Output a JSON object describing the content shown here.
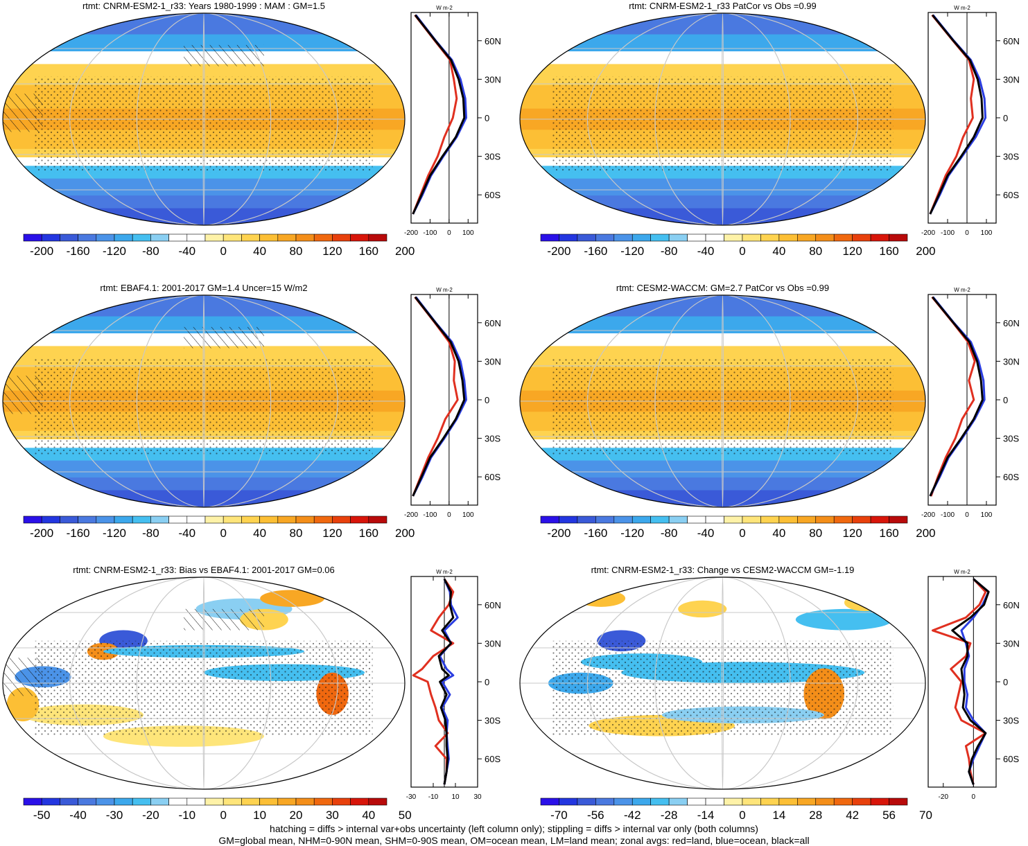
{
  "colors": {
    "palette": [
      "#2a10e8",
      "#2336e0",
      "#3a5ad8",
      "#4a79e0",
      "#4b93e8",
      "#3ca8ec",
      "#45bff0",
      "#8acff2",
      "#ffffff",
      "#ffffff",
      "#fef2a8",
      "#fee57a",
      "#fed350",
      "#fcbf35",
      "#f8a724",
      "#f48e19",
      "#f0680f",
      "#e8400c",
      "#d8150a",
      "#b80a0a"
    ],
    "land": "#e03020",
    "ocean": "#2a3de0",
    "all": "#000000",
    "grid": "#c8c8c8"
  },
  "footnotes": {
    "line1": "hatching = diffs > internal var+obs uncertainty (left column only); stippling = diffs > internal var only (both columns)",
    "line2": "GM=global mean, NHM=0-90N mean, SHM=0-90S mean, OM=ocean mean, LM=land mean; zonal avgs: red=land, blue=ocean, black=all"
  },
  "chart_data": [
    {
      "type": "heatmap",
      "title": "rtmt: CNRM-ESM2-1_r33: Years 1980-1999 : MAM : GM=1.5",
      "variant": "full",
      "colorbar": {
        "labels": [
          "-200",
          "-160",
          "-120",
          "-80",
          "-40",
          "0",
          "40",
          "80",
          "120",
          "160",
          "200"
        ],
        "range": [
          -200,
          200
        ]
      },
      "profile": {
        "unit": "W m-2",
        "xlim": [
          -200,
          150
        ],
        "xticks": [
          {
            "v": -200,
            "l": "-200"
          },
          {
            "v": -100,
            "l": "-100"
          },
          {
            "v": 0,
            "l": "0"
          },
          {
            "v": 100,
            "l": "100"
          }
        ],
        "lat_labels": [
          "60N",
          "30N",
          "0",
          "30S",
          "60S"
        ],
        "series": [
          {
            "name": "land",
            "lat": [
              80,
              60,
              45,
              30,
              15,
              0,
              -15,
              -30,
              -45,
              -60,
              -75
            ],
            "values": [
              -180,
              -75,
              5,
              25,
              40,
              20,
              -25,
              -60,
              -110,
              -150,
              -190
            ]
          },
          {
            "name": "ocean",
            "lat": [
              80,
              60,
              45,
              30,
              15,
              0,
              -15,
              -30,
              -45,
              -60,
              -75
            ],
            "values": [
              -175,
              -70,
              15,
              60,
              85,
              90,
              40,
              -30,
              -95,
              -140,
              -190
            ]
          },
          {
            "name": "all",
            "lat": [
              80,
              60,
              45,
              30,
              15,
              0,
              -15,
              -30,
              -45,
              -60,
              -75
            ],
            "values": [
              -178,
              -72,
              10,
              50,
              75,
              80,
              35,
              -35,
              -100,
              -145,
              -190
            ]
          }
        ]
      }
    },
    {
      "type": "heatmap",
      "title": "rtmt: CNRM-ESM2-1_r33 PatCor vs Obs =0.99",
      "variant": "full",
      "colorbar": {
        "labels": [
          "-200",
          "-160",
          "-120",
          "-80",
          "-40",
          "0",
          "40",
          "80",
          "120",
          "160",
          "200"
        ],
        "range": [
          -200,
          200
        ]
      },
      "profile": {
        "unit": "W m-2",
        "xlim": [
          -200,
          150
        ],
        "xticks": [
          {
            "v": -200,
            "l": "-200"
          },
          {
            "v": -100,
            "l": "-100"
          },
          {
            "v": 0,
            "l": "0"
          },
          {
            "v": 100,
            "l": "100"
          }
        ],
        "lat_labels": [
          "60N",
          "30N",
          "0",
          "30S",
          "60S"
        ],
        "series": [
          {
            "name": "land",
            "lat": [
              80,
              60,
              45,
              30,
              15,
              0,
              -15,
              -30,
              -45,
              -60,
              -75
            ],
            "values": [
              -180,
              -72,
              10,
              35,
              20,
              30,
              -20,
              -55,
              -110,
              -150,
              -190
            ]
          },
          {
            "name": "ocean",
            "lat": [
              80,
              60,
              45,
              30,
              15,
              0,
              -15,
              -30,
              -45,
              -60,
              -75
            ],
            "values": [
              -175,
              -68,
              20,
              65,
              90,
              95,
              45,
              -25,
              -95,
              -140,
              -190
            ]
          },
          {
            "name": "all",
            "lat": [
              80,
              60,
              45,
              30,
              15,
              0,
              -15,
              -30,
              -45,
              -60,
              -75
            ],
            "values": [
              -178,
              -70,
              15,
              55,
              75,
              80,
              35,
              -30,
              -100,
              -145,
              -190
            ]
          }
        ]
      }
    },
    {
      "type": "heatmap",
      "title": "rtmt: EBAF4.1: 2001-2017 GM=1.4 Uncer=15 W/m2",
      "variant": "full",
      "colorbar": {
        "labels": [
          "-200",
          "-160",
          "-120",
          "-80",
          "-40",
          "0",
          "40",
          "80",
          "120",
          "160",
          "200"
        ],
        "range": [
          -200,
          200
        ]
      },
      "profile": {
        "unit": "W m-2",
        "xlim": [
          -200,
          150
        ],
        "xticks": [
          {
            "v": -200,
            "l": "-200"
          },
          {
            "v": -100,
            "l": "-100"
          },
          {
            "v": 0,
            "l": "0"
          },
          {
            "v": 100,
            "l": "100"
          }
        ],
        "lat_labels": [
          "60N",
          "30N",
          "0",
          "30S",
          "60S"
        ],
        "series": [
          {
            "name": "land",
            "lat": [
              80,
              60,
              45,
              30,
              15,
              0,
              -15,
              -30,
              -45,
              -60,
              -75
            ],
            "values": [
              -180,
              -75,
              0,
              30,
              25,
              45,
              -20,
              -60,
              -110,
              -150,
              -190
            ]
          },
          {
            "name": "ocean",
            "lat": [
              80,
              60,
              45,
              30,
              15,
              0,
              -15,
              -30,
              -45,
              -60,
              -75
            ],
            "values": [
              -175,
              -70,
              15,
              60,
              80,
              90,
              40,
              -25,
              -95,
              -140,
              -190
            ]
          },
          {
            "name": "all",
            "lat": [
              80,
              60,
              45,
              30,
              15,
              0,
              -15,
              -30,
              -45,
              -60,
              -75
            ],
            "values": [
              -178,
              -72,
              8,
              50,
              70,
              80,
              35,
              -30,
              -100,
              -145,
              -190
            ]
          }
        ]
      }
    },
    {
      "type": "heatmap",
      "title": "rtmt: CESM2-WACCM: GM=2.7 PatCor vs Obs =0.99",
      "variant": "full",
      "colorbar": {
        "labels": [
          "-200",
          "-160",
          "-120",
          "-80",
          "-40",
          "0",
          "40",
          "80",
          "120",
          "160",
          "200"
        ],
        "range": [
          -200,
          200
        ]
      },
      "profile": {
        "unit": "W m-2",
        "xlim": [
          -200,
          150
        ],
        "xticks": [
          {
            "v": -200,
            "l": "-200"
          },
          {
            "v": -100,
            "l": "-100"
          },
          {
            "v": 0,
            "l": "0"
          },
          {
            "v": 100,
            "l": "100"
          }
        ],
        "lat_labels": [
          "60N",
          "30N",
          "0",
          "30S",
          "60S"
        ],
        "series": [
          {
            "name": "land",
            "lat": [
              80,
              60,
              45,
              30,
              15,
              0,
              -15,
              -30,
              -45,
              -60,
              -75
            ],
            "values": [
              -180,
              -72,
              5,
              40,
              10,
              35,
              -25,
              -60,
              -110,
              -150,
              -185
            ]
          },
          {
            "name": "ocean",
            "lat": [
              80,
              60,
              45,
              30,
              15,
              0,
              -15,
              -30,
              -45,
              -60,
              -75
            ],
            "values": [
              -175,
              -68,
              20,
              60,
              85,
              90,
              40,
              -25,
              -95,
              -140,
              -190
            ]
          },
          {
            "name": "all",
            "lat": [
              80,
              60,
              45,
              30,
              15,
              0,
              -15,
              -30,
              -45,
              -60,
              -75
            ],
            "values": [
              -178,
              -70,
              12,
              52,
              72,
              80,
              35,
              -30,
              -100,
              -145,
              -190
            ]
          }
        ]
      }
    },
    {
      "type": "heatmap",
      "title": "rtmt: CNRM-ESM2-1_r33: Bias vs EBAF4.1: 2001-2017 GM=0.06",
      "variant": "bias",
      "colorbar": {
        "labels": [
          "-50",
          "-40",
          "-30",
          "-20",
          "-10",
          "0",
          "10",
          "20",
          "30",
          "40",
          "50"
        ],
        "range": [
          -50,
          50
        ]
      },
      "profile": {
        "unit": "W m-2",
        "xlim": [
          -30,
          30
        ],
        "xticks": [
          {
            "v": -30,
            "l": "-30"
          },
          {
            "v": -10,
            "l": "-10"
          },
          {
            "v": 10,
            "l": "10"
          },
          {
            "v": 30,
            "l": "30"
          }
        ],
        "lat_labels": [
          "60N",
          "30N",
          "0",
          "30S",
          "60S"
        ],
        "series": [
          {
            "name": "land",
            "lat": [
              80,
              70,
              60,
              50,
              40,
              30,
              20,
              10,
              5,
              0,
              -10,
              -20,
              -30,
              -40,
              -50,
              -60,
              -70,
              -80
            ],
            "values": [
              0,
              8,
              4,
              -5,
              -12,
              8,
              -10,
              -20,
              -28,
              -15,
              -12,
              -8,
              -5,
              3,
              -8,
              2,
              2,
              0
            ]
          },
          {
            "name": "ocean",
            "lat": [
              80,
              70,
              60,
              50,
              40,
              30,
              20,
              10,
              5,
              0,
              -10,
              -20,
              -30,
              -40,
              -50,
              -60,
              -70,
              -80
            ],
            "values": [
              0,
              5,
              6,
              12,
              0,
              6,
              -4,
              2,
              8,
              -2,
              5,
              -2,
              3,
              2,
              3,
              4,
              2,
              0
            ]
          },
          {
            "name": "all",
            "lat": [
              80,
              70,
              60,
              50,
              40,
              30,
              20,
              10,
              5,
              0,
              -10,
              -20,
              -30,
              -40,
              -50,
              -60,
              -70,
              -80
            ],
            "values": [
              0,
              6,
              5,
              8,
              -2,
              6,
              -5,
              -2,
              4,
              -4,
              2,
              -3,
              1,
              2,
              2,
              3,
              2,
              0
            ]
          }
        ]
      }
    },
    {
      "type": "heatmap",
      "title": "rtmt: CNRM-ESM2-1_r33: Change vs CESM2-WACCM GM=-1.19",
      "variant": "change",
      "colorbar": {
        "labels": [
          "-70",
          "-56",
          "-42",
          "-28",
          "-14",
          "0",
          "14",
          "28",
          "42",
          "56",
          "70"
        ],
        "range": [
          -70,
          70
        ]
      },
      "profile": {
        "unit": "W m-2",
        "xlim": [
          -30,
          15
        ],
        "xticks": [
          {
            "v": -20,
            "l": "-20"
          },
          {
            "v": 0,
            "l": "0"
          }
        ],
        "lat_labels": [
          "60N",
          "30N",
          "0",
          "30S",
          "60S"
        ],
        "series": [
          {
            "name": "land",
            "lat": [
              80,
              70,
              60,
              50,
              40,
              30,
              20,
              10,
              0,
              -10,
              -20,
              -30,
              -40,
              -50,
              -60,
              -70,
              -80
            ],
            "values": [
              0,
              8,
              4,
              -5,
              -27,
              -2,
              -5,
              -15,
              -8,
              -10,
              -12,
              -8,
              8,
              -5,
              -3,
              -2,
              0
            ]
          },
          {
            "name": "ocean",
            "lat": [
              80,
              70,
              60,
              50,
              40,
              30,
              20,
              10,
              0,
              -10,
              -20,
              -30,
              -40,
              -50,
              -60,
              -70,
              -80
            ],
            "values": [
              0,
              10,
              6,
              0,
              -8,
              -5,
              -3,
              -6,
              -6,
              -4,
              -5,
              0,
              8,
              4,
              0,
              -3,
              0
            ]
          },
          {
            "name": "all",
            "lat": [
              80,
              70,
              60,
              50,
              40,
              30,
              20,
              10,
              0,
              -10,
              -20,
              -30,
              -40,
              -50,
              -60,
              -70,
              -80
            ],
            "values": [
              0,
              10,
              7,
              -2,
              -14,
              -4,
              -4,
              -8,
              -7,
              -6,
              -7,
              -2,
              8,
              3,
              -1,
              -3,
              0
            ]
          }
        ]
      }
    }
  ]
}
